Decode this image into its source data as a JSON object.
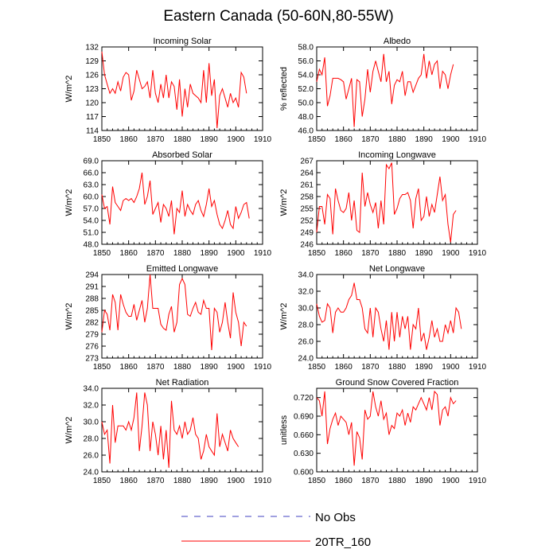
{
  "title": "Eastern Canada (50-60N,80-55W)",
  "colors": {
    "model": "#ff0000",
    "obs": "#4040c0",
    "axis": "#000000"
  },
  "legend": {
    "obs_label": "No Obs",
    "model_label": "20TR_160"
  },
  "chart_data": [
    {
      "type": "line",
      "title": "Incoming Solar",
      "ylabel": "W/m^2",
      "xlim": [
        1850,
        1910
      ],
      "ylim": [
        114,
        132
      ],
      "xticks": [
        1850,
        1860,
        1870,
        1880,
        1890,
        1900,
        1910
      ],
      "yticks": [
        "114",
        "117",
        "120",
        "123",
        "126",
        "129",
        "132"
      ],
      "series": [
        {
          "name": "20TR_160",
          "x_start": 1850,
          "values": [
            131,
            126,
            124,
            122,
            123,
            122,
            124.5,
            122.5,
            125.5,
            126.5,
            126,
            120.5,
            122.5,
            127,
            125,
            123,
            123.5,
            124.5,
            121,
            127,
            122,
            120,
            124,
            121,
            126,
            121,
            124.5,
            123.5,
            118.5,
            125,
            117,
            123,
            119,
            124,
            122,
            121.5,
            121,
            120,
            127,
            120,
            128.5,
            121.5,
            125,
            114.5,
            121.5,
            123,
            121,
            119,
            122,
            120,
            121,
            119,
            126.5,
            125.5,
            122
          ]
        }
      ]
    },
    {
      "type": "line",
      "title": "Albedo",
      "ylabel": "% reflected",
      "xlim": [
        1850,
        1910
      ],
      "ylim": [
        46,
        58
      ],
      "xticks": [
        1850,
        1860,
        1870,
        1880,
        1890,
        1900,
        1910
      ],
      "yticks": [
        "46.0",
        "48.0",
        "50.0",
        "52.0",
        "54.0",
        "56.0",
        "58.0"
      ],
      "series": [
        {
          "name": "20TR_160",
          "x_start": 1850,
          "values": [
            53,
            54.8,
            54,
            56.5,
            49.5,
            51,
            53.5,
            53.5,
            53.5,
            53.3,
            53,
            50.5,
            52,
            53.5,
            46.5,
            53.3,
            53,
            48,
            50.5,
            54.8,
            51.5,
            54.5,
            56,
            54.5,
            53,
            57,
            53,
            54.5,
            49.8,
            52.5,
            53.3,
            53,
            54.5,
            51,
            53,
            53,
            51.5,
            52.5,
            53.5,
            54,
            57,
            53.5,
            56,
            54,
            55.5,
            56,
            52,
            54.5,
            54,
            52,
            54,
            55.5
          ]
        }
      ]
    },
    {
      "type": "line",
      "title": "Absorbed Solar",
      "ylabel": "W/m^2",
      "xlim": [
        1850,
        1910
      ],
      "ylim": [
        48,
        69
      ],
      "xticks": [
        1850,
        1860,
        1870,
        1880,
        1890,
        1900,
        1910
      ],
      "yticks": [
        "48.0",
        "51.0",
        "54.0",
        "57.0",
        "60.0",
        "63.0",
        "66.0",
        "69.0"
      ],
      "series": [
        {
          "name": "20TR_160",
          "x_start": 1850,
          "values": [
            60.5,
            57,
            57.5,
            53,
            62.5,
            58.5,
            57.5,
            56.5,
            59,
            59.5,
            59,
            59.5,
            58.5,
            60,
            62,
            66,
            58,
            60,
            64,
            55.5,
            57,
            58.5,
            53.5,
            58,
            57,
            55,
            59,
            50.5,
            57,
            56,
            61.5,
            55,
            58,
            56.5,
            55.5,
            58,
            59,
            56.5,
            55,
            58,
            62,
            57.5,
            59,
            55.5,
            53,
            52,
            54,
            56.5,
            53,
            52,
            57.5,
            54.5,
            56,
            58,
            58.5,
            54.5
          ]
        }
      ]
    },
    {
      "type": "line",
      "title": "Incoming Longwave",
      "ylabel": "W/m^2",
      "xlim": [
        1850,
        1910
      ],
      "ylim": [
        246,
        267
      ],
      "xticks": [
        1850,
        1860,
        1870,
        1880,
        1890,
        1900,
        1910
      ],
      "yticks": [
        "246",
        "249",
        "252",
        "255",
        "258",
        "261",
        "264",
        "267"
      ],
      "series": [
        {
          "name": "20TR_160",
          "x_start": 1850,
          "values": [
            249,
            255.5,
            255.5,
            251,
            258.5,
            257.5,
            248.5,
            260,
            257,
            254.5,
            254,
            255,
            259,
            252,
            257,
            249.5,
            249,
            264,
            255.5,
            259,
            256,
            254,
            256.5,
            250,
            257,
            251,
            266,
            265,
            266.5,
            253.5,
            255,
            257.5,
            258.5,
            258.5,
            259,
            257,
            250,
            257.5,
            260,
            252,
            253,
            258,
            253,
            256,
            254,
            258.5,
            263,
            257,
            258.5,
            251,
            246.5,
            253.5,
            254.5
          ]
        }
      ]
    },
    {
      "type": "line",
      "title": "Emitted Longwave",
      "ylabel": "W/m^2",
      "xlim": [
        1850,
        1910
      ],
      "ylim": [
        273,
        294
      ],
      "xticks": [
        1850,
        1860,
        1870,
        1880,
        1890,
        1900,
        1910
      ],
      "yticks": [
        "273",
        "276",
        "279",
        "282",
        "285",
        "288",
        "291",
        "294"
      ],
      "series": [
        {
          "name": "20TR_160",
          "x_start": 1850,
          "values": [
            279.5,
            285,
            284,
            280,
            289,
            287,
            280,
            289,
            286.5,
            284.5,
            283.5,
            283.5,
            286.5,
            282.5,
            285,
            287.5,
            282,
            285.5,
            294,
            285.5,
            285.5,
            285.5,
            281.5,
            280.5,
            280,
            284,
            286,
            279.5,
            282,
            291.5,
            293,
            291.5,
            284,
            283.5,
            285.5,
            287,
            284.5,
            284,
            287.5,
            285.5,
            285.5,
            275,
            285.5,
            284.5,
            279.5,
            282,
            287,
            282,
            278,
            289.5,
            284.5,
            282,
            276,
            282,
            281
          ]
        }
      ]
    },
    {
      "type": "line",
      "title": "Net Longwave",
      "ylabel": "W/m^2",
      "xlim": [
        1850,
        1910
      ],
      "ylim": [
        24,
        34
      ],
      "xticks": [
        1850,
        1860,
        1870,
        1880,
        1890,
        1900,
        1910
      ],
      "yticks": [
        "24.0",
        "26.0",
        "28.0",
        "30.0",
        "32.0",
        "34.0"
      ],
      "series": [
        {
          "name": "20TR_160",
          "x_start": 1850,
          "values": [
            30.5,
            29,
            28.3,
            28.5,
            30.5,
            30,
            27,
            29.5,
            30,
            29.5,
            29.5,
            30,
            31,
            31.5,
            33,
            31,
            31,
            30,
            27.5,
            27,
            30,
            26.5,
            30,
            29.5,
            27.5,
            26,
            28.5,
            25,
            29.5,
            26,
            29.5,
            26.5,
            29,
            27.5,
            29,
            25,
            28,
            27.5,
            30,
            26,
            27,
            25,
            26.5,
            28.5,
            26.5,
            27.5,
            26,
            26,
            28,
            27,
            28.5,
            27,
            30,
            29.5,
            27.5
          ]
        }
      ]
    },
    {
      "type": "line",
      "title": "Net Radiation",
      "ylabel": "W/m^2",
      "xlim": [
        1850,
        1910
      ],
      "ylim": [
        24,
        34
      ],
      "xticks": [
        1850,
        1860,
        1870,
        1880,
        1890,
        1900,
        1910
      ],
      "yticks": [
        "24.0",
        "26.0",
        "28.0",
        "30.0",
        "32.0",
        "34.0"
      ],
      "series": [
        {
          "name": "20TR_160",
          "x_start": 1850,
          "values": [
            30,
            28.5,
            29,
            25,
            32,
            27.5,
            29.5,
            29.5,
            29.5,
            29,
            30,
            29,
            30.5,
            33.5,
            26.5,
            29.5,
            33.5,
            32,
            26.5,
            30,
            28.5,
            26,
            29.5,
            25.5,
            29,
            24.5,
            32.5,
            29,
            28.5,
            29.5,
            28,
            30,
            28.5,
            29,
            30.5,
            28.5,
            28,
            25.5,
            26.5,
            28.5,
            27,
            26.5,
            26,
            31,
            27,
            28.5,
            27.5,
            26.5,
            29,
            28,
            27.5,
            27
          ]
        }
      ]
    },
    {
      "type": "line",
      "title": "Ground Snow Covered Fraction",
      "ylabel": "unitless",
      "xlim": [
        1850,
        1910
      ],
      "ylim": [
        0.6,
        0.735
      ],
      "xticks": [
        1850,
        1860,
        1870,
        1880,
        1890,
        1900,
        1910
      ],
      "yticks": [
        "0.600",
        "0.630",
        "0.660",
        "0.690",
        "0.720"
      ],
      "series": [
        {
          "name": "20TR_160",
          "x_start": 1850,
          "values": [
            0.72,
            0.715,
            0.69,
            0.73,
            0.645,
            0.67,
            0.685,
            0.695,
            0.675,
            0.69,
            0.685,
            0.68,
            0.66,
            0.68,
            0.61,
            0.665,
            0.655,
            0.62,
            0.7,
            0.685,
            0.69,
            0.73,
            0.705,
            0.69,
            0.715,
            0.685,
            0.695,
            0.66,
            0.675,
            0.67,
            0.695,
            0.69,
            0.7,
            0.675,
            0.695,
            0.68,
            0.705,
            0.7,
            0.71,
            0.72,
            0.71,
            0.7,
            0.72,
            0.7,
            0.73,
            0.725,
            0.675,
            0.7,
            0.705,
            0.69,
            0.72,
            0.71,
            0.715
          ]
        }
      ]
    }
  ]
}
